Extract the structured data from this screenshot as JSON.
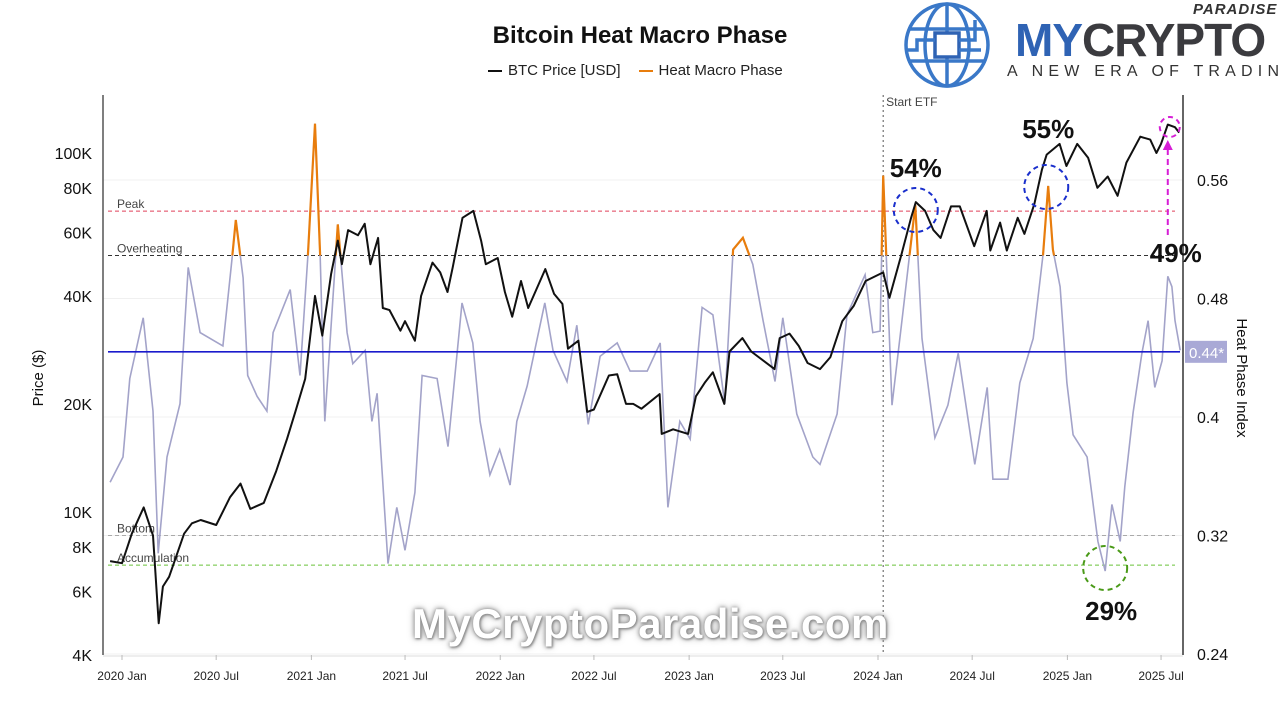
{
  "title": "Bitcoin Heat Macro Phase",
  "legend": [
    {
      "label": "BTC Price [USD]",
      "color": "#111111"
    },
    {
      "label": "Heat Macro Phase",
      "color": "#e87d0d"
    }
  ],
  "logo": {
    "paradise": "PARADISE",
    "my": "MY",
    "crypto": "CRYPTO",
    "tagline": "A NEW ERA OF TRADING"
  },
  "watermark": "MyCryptoParadise.com",
  "chart_data": {
    "type": "line",
    "title": "Bitcoin Heat Macro Phase",
    "xlabel": "",
    "ylabel_left": "Price ($)",
    "ylabel_right": "Heat Phase Index",
    "y_left_scale": "log",
    "y_left_range": [
      4000,
      160000
    ],
    "y_right_range": [
      0.24,
      0.6
    ],
    "x_range": [
      "2019-12-03",
      "2025-08-08"
    ],
    "x_ticks": [
      "2020 Jan",
      "2020 Jul",
      "2021 Jan",
      "2021 Jul",
      "2022 Jan",
      "2022 Jul",
      "2023 Jan",
      "2023 Jul",
      "2024 Jan",
      "2024 Jul",
      "2025 Jan",
      "2025 Jul"
    ],
    "x_tick_dates": [
      "2020-01-01",
      "2020-07-01",
      "2021-01-01",
      "2021-07-01",
      "2022-01-01",
      "2022-07-01",
      "2023-01-01",
      "2023-07-01",
      "2024-01-01",
      "2024-07-01",
      "2025-01-01",
      "2025-07-01"
    ],
    "y_left_ticks": [
      {
        "v": 4000,
        "label": "4K"
      },
      {
        "v": 6000,
        "label": "6K"
      },
      {
        "v": 8000,
        "label": "8K"
      },
      {
        "v": 10000,
        "label": "10K"
      },
      {
        "v": 20000,
        "label": "20K"
      },
      {
        "v": 40000,
        "label": "40K"
      },
      {
        "v": 60000,
        "label": "60K"
      },
      {
        "v": 80000,
        "label": "80K"
      },
      {
        "v": 100000,
        "label": "100K"
      }
    ],
    "y_right_ticks": [
      {
        "v": 0.24,
        "label": "0.24"
      },
      {
        "v": 0.32,
        "label": "0.32"
      },
      {
        "v": 0.4,
        "label": "0.4"
      },
      {
        "v": 0.48,
        "label": "0.48"
      },
      {
        "v": 0.56,
        "label": "0.56"
      }
    ],
    "grid": true,
    "legend_position": "top-center",
    "levels": [
      {
        "label": "Peak",
        "value": 0.539,
        "color": "#e0405a"
      },
      {
        "label": "Overheating",
        "value": 0.509,
        "color": "#333333"
      },
      {
        "label": "Bottom",
        "value": 0.32,
        "color": "#aaaaaa"
      },
      {
        "label": "Accumulation",
        "value": 0.3,
        "color": "#6ac23a"
      }
    ],
    "current_value": {
      "label": "0.44*",
      "value": 0.444,
      "line_color": "#1a1acc",
      "badge_color": "#a9a9d6"
    },
    "event": {
      "label": "Start ETF",
      "date": "2024-01-11"
    },
    "annotations": [
      {
        "text": "54%",
        "date": "2024-03-14",
        "type": "blue-circle"
      },
      {
        "text": "55%",
        "date": "2024-11-25",
        "type": "blue-circle"
      },
      {
        "text": "29%",
        "date": "2025-03-15",
        "type": "green-circle"
      },
      {
        "text": "49%",
        "date": "2025-07-14",
        "type": "magenta-arrow"
      }
    ],
    "series": [
      {
        "name": "BTC Price [USD]",
        "axis": "left",
        "color": "#111111",
        "points": [
          [
            "2019-12-09",
            7300
          ],
          [
            "2020-01-01",
            7200
          ],
          [
            "2020-01-20",
            8700
          ],
          [
            "2020-02-12",
            10300
          ],
          [
            "2020-03-01",
            8600
          ],
          [
            "2020-03-12",
            4900
          ],
          [
            "2020-03-20",
            6200
          ],
          [
            "2020-04-01",
            6600
          ],
          [
            "2020-04-30",
            8700
          ],
          [
            "2020-05-15",
            9300
          ],
          [
            "2020-06-01",
            9500
          ],
          [
            "2020-07-01",
            9200
          ],
          [
            "2020-07-28",
            11000
          ],
          [
            "2020-08-17",
            12000
          ],
          [
            "2020-09-05",
            10200
          ],
          [
            "2020-10-01",
            10600
          ],
          [
            "2020-10-25",
            13000
          ],
          [
            "2020-11-15",
            16000
          ],
          [
            "2020-12-01",
            19000
          ],
          [
            "2020-12-20",
            23500
          ],
          [
            "2021-01-08",
            40000
          ],
          [
            "2021-01-22",
            31000
          ],
          [
            "2021-02-08",
            46000
          ],
          [
            "2021-02-21",
            57000
          ],
          [
            "2021-03-01",
            49000
          ],
          [
            "2021-03-13",
            61000
          ],
          [
            "2021-04-01",
            59000
          ],
          [
            "2021-04-14",
            63500
          ],
          [
            "2021-04-25",
            49000
          ],
          [
            "2021-05-10",
            58000
          ],
          [
            "2021-05-19",
            37000
          ],
          [
            "2021-06-01",
            36500
          ],
          [
            "2021-06-22",
            32000
          ],
          [
            "2021-07-01",
            34000
          ],
          [
            "2021-07-20",
            30000
          ],
          [
            "2021-08-01",
            40000
          ],
          [
            "2021-08-23",
            49500
          ],
          [
            "2021-09-07",
            46500
          ],
          [
            "2021-09-21",
            41000
          ],
          [
            "2021-10-01",
            48000
          ],
          [
            "2021-10-20",
            66000
          ],
          [
            "2021-11-10",
            69000
          ],
          [
            "2021-11-25",
            57000
          ],
          [
            "2021-12-04",
            49000
          ],
          [
            "2021-12-27",
            51000
          ],
          [
            "2022-01-10",
            41000
          ],
          [
            "2022-01-24",
            35000
          ],
          [
            "2022-02-10",
            44000
          ],
          [
            "2022-02-24",
            37000
          ],
          [
            "2022-03-29",
            47500
          ],
          [
            "2022-04-15",
            40500
          ],
          [
            "2022-05-01",
            38000
          ],
          [
            "2022-05-12",
            28500
          ],
          [
            "2022-06-01",
            30000
          ],
          [
            "2022-06-18",
            19000
          ],
          [
            "2022-07-01",
            19300
          ],
          [
            "2022-07-30",
            24000
          ],
          [
            "2022-08-15",
            24200
          ],
          [
            "2022-09-01",
            20000
          ],
          [
            "2022-09-15",
            20000
          ],
          [
            "2022-10-01",
            19400
          ],
          [
            "2022-11-05",
            21300
          ],
          [
            "2022-11-09",
            16500
          ],
          [
            "2022-12-01",
            17000
          ],
          [
            "2022-12-30",
            16500
          ],
          [
            "2023-01-14",
            21000
          ],
          [
            "2023-02-01",
            23000
          ],
          [
            "2023-02-16",
            24500
          ],
          [
            "2023-03-10",
            20000
          ],
          [
            "2023-03-20",
            28000
          ],
          [
            "2023-04-14",
            30500
          ],
          [
            "2023-05-01",
            28000
          ],
          [
            "2023-06-15",
            25000
          ],
          [
            "2023-06-25",
            30500
          ],
          [
            "2023-07-14",
            31400
          ],
          [
            "2023-08-01",
            29000
          ],
          [
            "2023-08-18",
            26000
          ],
          [
            "2023-09-11",
            25000
          ],
          [
            "2023-10-01",
            27000
          ],
          [
            "2023-10-24",
            34000
          ],
          [
            "2023-11-15",
            37500
          ],
          [
            "2023-12-08",
            44000
          ],
          [
            "2024-01-11",
            46500
          ],
          [
            "2024-01-23",
            39500
          ],
          [
            "2024-02-15",
            52000
          ],
          [
            "2024-03-05",
            66000
          ],
          [
            "2024-03-14",
            73000
          ],
          [
            "2024-04-01",
            69000
          ],
          [
            "2024-04-17",
            61000
          ],
          [
            "2024-05-01",
            58000
          ],
          [
            "2024-05-21",
            71000
          ],
          [
            "2024-06-07",
            71000
          ],
          [
            "2024-07-05",
            55000
          ],
          [
            "2024-07-29",
            69000
          ],
          [
            "2024-08-05",
            53500
          ],
          [
            "2024-08-24",
            64000
          ],
          [
            "2024-09-06",
            53500
          ],
          [
            "2024-09-27",
            66000
          ],
          [
            "2024-10-10",
            59500
          ],
          [
            "2024-10-29",
            72000
          ],
          [
            "2024-11-13",
            90000
          ],
          [
            "2024-11-22",
            99000
          ],
          [
            "2024-12-17",
            106000
          ],
          [
            "2024-12-30",
            92000
          ],
          [
            "2025-01-20",
            106000
          ],
          [
            "2025-02-10",
            97000
          ],
          [
            "2025-02-28",
            80000
          ],
          [
            "2025-03-20",
            86000
          ],
          [
            "2025-04-08",
            76000
          ],
          [
            "2025-04-25",
            94000
          ],
          [
            "2025-05-22",
            111000
          ],
          [
            "2025-06-10",
            109000
          ],
          [
            "2025-06-22",
            100000
          ],
          [
            "2025-07-01",
            106000
          ],
          [
            "2025-07-14",
            120000
          ],
          [
            "2025-07-28",
            118000
          ],
          [
            "2025-08-05",
            114000
          ]
        ]
      },
      {
        "name": "Heat Macro Phase",
        "axis": "right",
        "color": "#a3a3c9",
        "highlight_color": "#e87d0d",
        "highlight_above": 0.509,
        "points": [
          [
            "2019-12-09",
            0.356
          ],
          [
            "2020-01-03",
            0.373
          ],
          [
            "2020-01-16",
            0.426
          ],
          [
            "2020-02-11",
            0.467
          ],
          [
            "2020-03-01",
            0.404
          ],
          [
            "2020-03-11",
            0.308
          ],
          [
            "2020-03-28",
            0.373
          ],
          [
            "2020-04-22",
            0.409
          ],
          [
            "2020-05-08",
            0.501
          ],
          [
            "2020-05-31",
            0.457
          ],
          [
            "2020-07-14",
            0.448
          ],
          [
            "2020-08-01",
            0.508
          ],
          [
            "2020-08-08",
            0.533
          ],
          [
            "2020-08-22",
            0.494
          ],
          [
            "2020-08-31",
            0.428
          ],
          [
            "2020-09-18",
            0.414
          ],
          [
            "2020-10-07",
            0.404
          ],
          [
            "2020-10-19",
            0.457
          ],
          [
            "2020-11-21",
            0.486
          ],
          [
            "2020-12-10",
            0.428
          ],
          [
            "2020-12-25",
            0.508
          ],
          [
            "2021-01-08",
            0.598
          ],
          [
            "2021-01-18",
            0.508
          ],
          [
            "2021-01-27",
            0.397
          ],
          [
            "2021-02-21",
            0.53
          ],
          [
            "2021-03-11",
            0.457
          ],
          [
            "2021-03-22",
            0.436
          ],
          [
            "2021-04-15",
            0.445
          ],
          [
            "2021-04-28",
            0.397
          ],
          [
            "2021-05-08",
            0.416
          ],
          [
            "2021-05-29",
            0.301
          ],
          [
            "2021-06-15",
            0.339
          ],
          [
            "2021-07-01",
            0.31
          ],
          [
            "2021-07-20",
            0.349
          ],
          [
            "2021-08-03",
            0.428
          ],
          [
            "2021-09-01",
            0.426
          ],
          [
            "2021-09-22",
            0.38
          ],
          [
            "2021-10-19",
            0.477
          ],
          [
            "2021-11-09",
            0.45
          ],
          [
            "2021-11-23",
            0.397
          ],
          [
            "2021-12-12",
            0.361
          ],
          [
            "2021-12-31",
            0.378
          ],
          [
            "2022-01-20",
            0.354
          ],
          [
            "2022-02-02",
            0.397
          ],
          [
            "2022-02-22",
            0.421
          ],
          [
            "2022-03-28",
            0.477
          ],
          [
            "2022-04-13",
            0.445
          ],
          [
            "2022-05-10",
            0.424
          ],
          [
            "2022-05-29",
            0.462
          ],
          [
            "2022-06-20",
            0.395
          ],
          [
            "2022-07-13",
            0.441
          ],
          [
            "2022-08-15",
            0.45
          ],
          [
            "2022-09-09",
            0.431
          ],
          [
            "2022-10-12",
            0.431
          ],
          [
            "2022-11-06",
            0.45
          ],
          [
            "2022-11-21",
            0.339
          ],
          [
            "2022-12-14",
            0.397
          ],
          [
            "2023-01-03",
            0.385
          ],
          [
            "2023-01-26",
            0.474
          ],
          [
            "2023-02-16",
            0.469
          ],
          [
            "2023-03-11",
            0.409
          ],
          [
            "2023-03-27",
            0.513
          ],
          [
            "2023-04-15",
            0.521
          ],
          [
            "2023-05-04",
            0.503
          ],
          [
            "2023-05-24",
            0.465
          ],
          [
            "2023-06-16",
            0.424
          ],
          [
            "2023-07-01",
            0.467
          ],
          [
            "2023-07-28",
            0.402
          ],
          [
            "2023-08-28",
            0.373
          ],
          [
            "2023-09-11",
            0.368
          ],
          [
            "2023-10-14",
            0.402
          ],
          [
            "2023-11-02",
            0.469
          ],
          [
            "2023-12-07",
            0.496
          ],
          [
            "2023-12-22",
            0.457
          ],
          [
            "2024-01-05",
            0.458
          ],
          [
            "2024-01-11",
            0.563
          ],
          [
            "2024-01-28",
            0.408
          ],
          [
            "2024-02-18",
            0.47
          ],
          [
            "2024-03-13",
            0.543
          ],
          [
            "2024-03-26",
            0.453
          ],
          [
            "2024-04-20",
            0.386
          ],
          [
            "2024-05-15",
            0.408
          ],
          [
            "2024-06-04",
            0.443
          ],
          [
            "2024-07-06",
            0.368
          ],
          [
            "2024-07-30",
            0.42
          ],
          [
            "2024-08-10",
            0.358
          ],
          [
            "2024-09-08",
            0.358
          ],
          [
            "2024-10-01",
            0.423
          ],
          [
            "2024-10-27",
            0.453
          ],
          [
            "2024-11-15",
            0.51
          ],
          [
            "2024-11-25",
            0.556
          ],
          [
            "2024-12-04",
            0.513
          ],
          [
            "2024-12-18",
            0.488
          ],
          [
            "2024-12-31",
            0.423
          ],
          [
            "2025-01-12",
            0.388
          ],
          [
            "2025-02-08",
            0.373
          ],
          [
            "2025-03-01",
            0.316
          ],
          [
            "2025-03-15",
            0.296
          ],
          [
            "2025-03-28",
            0.341
          ],
          [
            "2025-04-13",
            0.316
          ],
          [
            "2025-04-22",
            0.353
          ],
          [
            "2025-05-08",
            0.403
          ],
          [
            "2025-05-25",
            0.443
          ],
          [
            "2025-06-06",
            0.465
          ],
          [
            "2025-06-19",
            0.42
          ],
          [
            "2025-07-03",
            0.438
          ],
          [
            "2025-07-14",
            0.495
          ],
          [
            "2025-07-22",
            0.488
          ],
          [
            "2025-07-28",
            0.465
          ],
          [
            "2025-08-07",
            0.445
          ]
        ]
      }
    ]
  }
}
